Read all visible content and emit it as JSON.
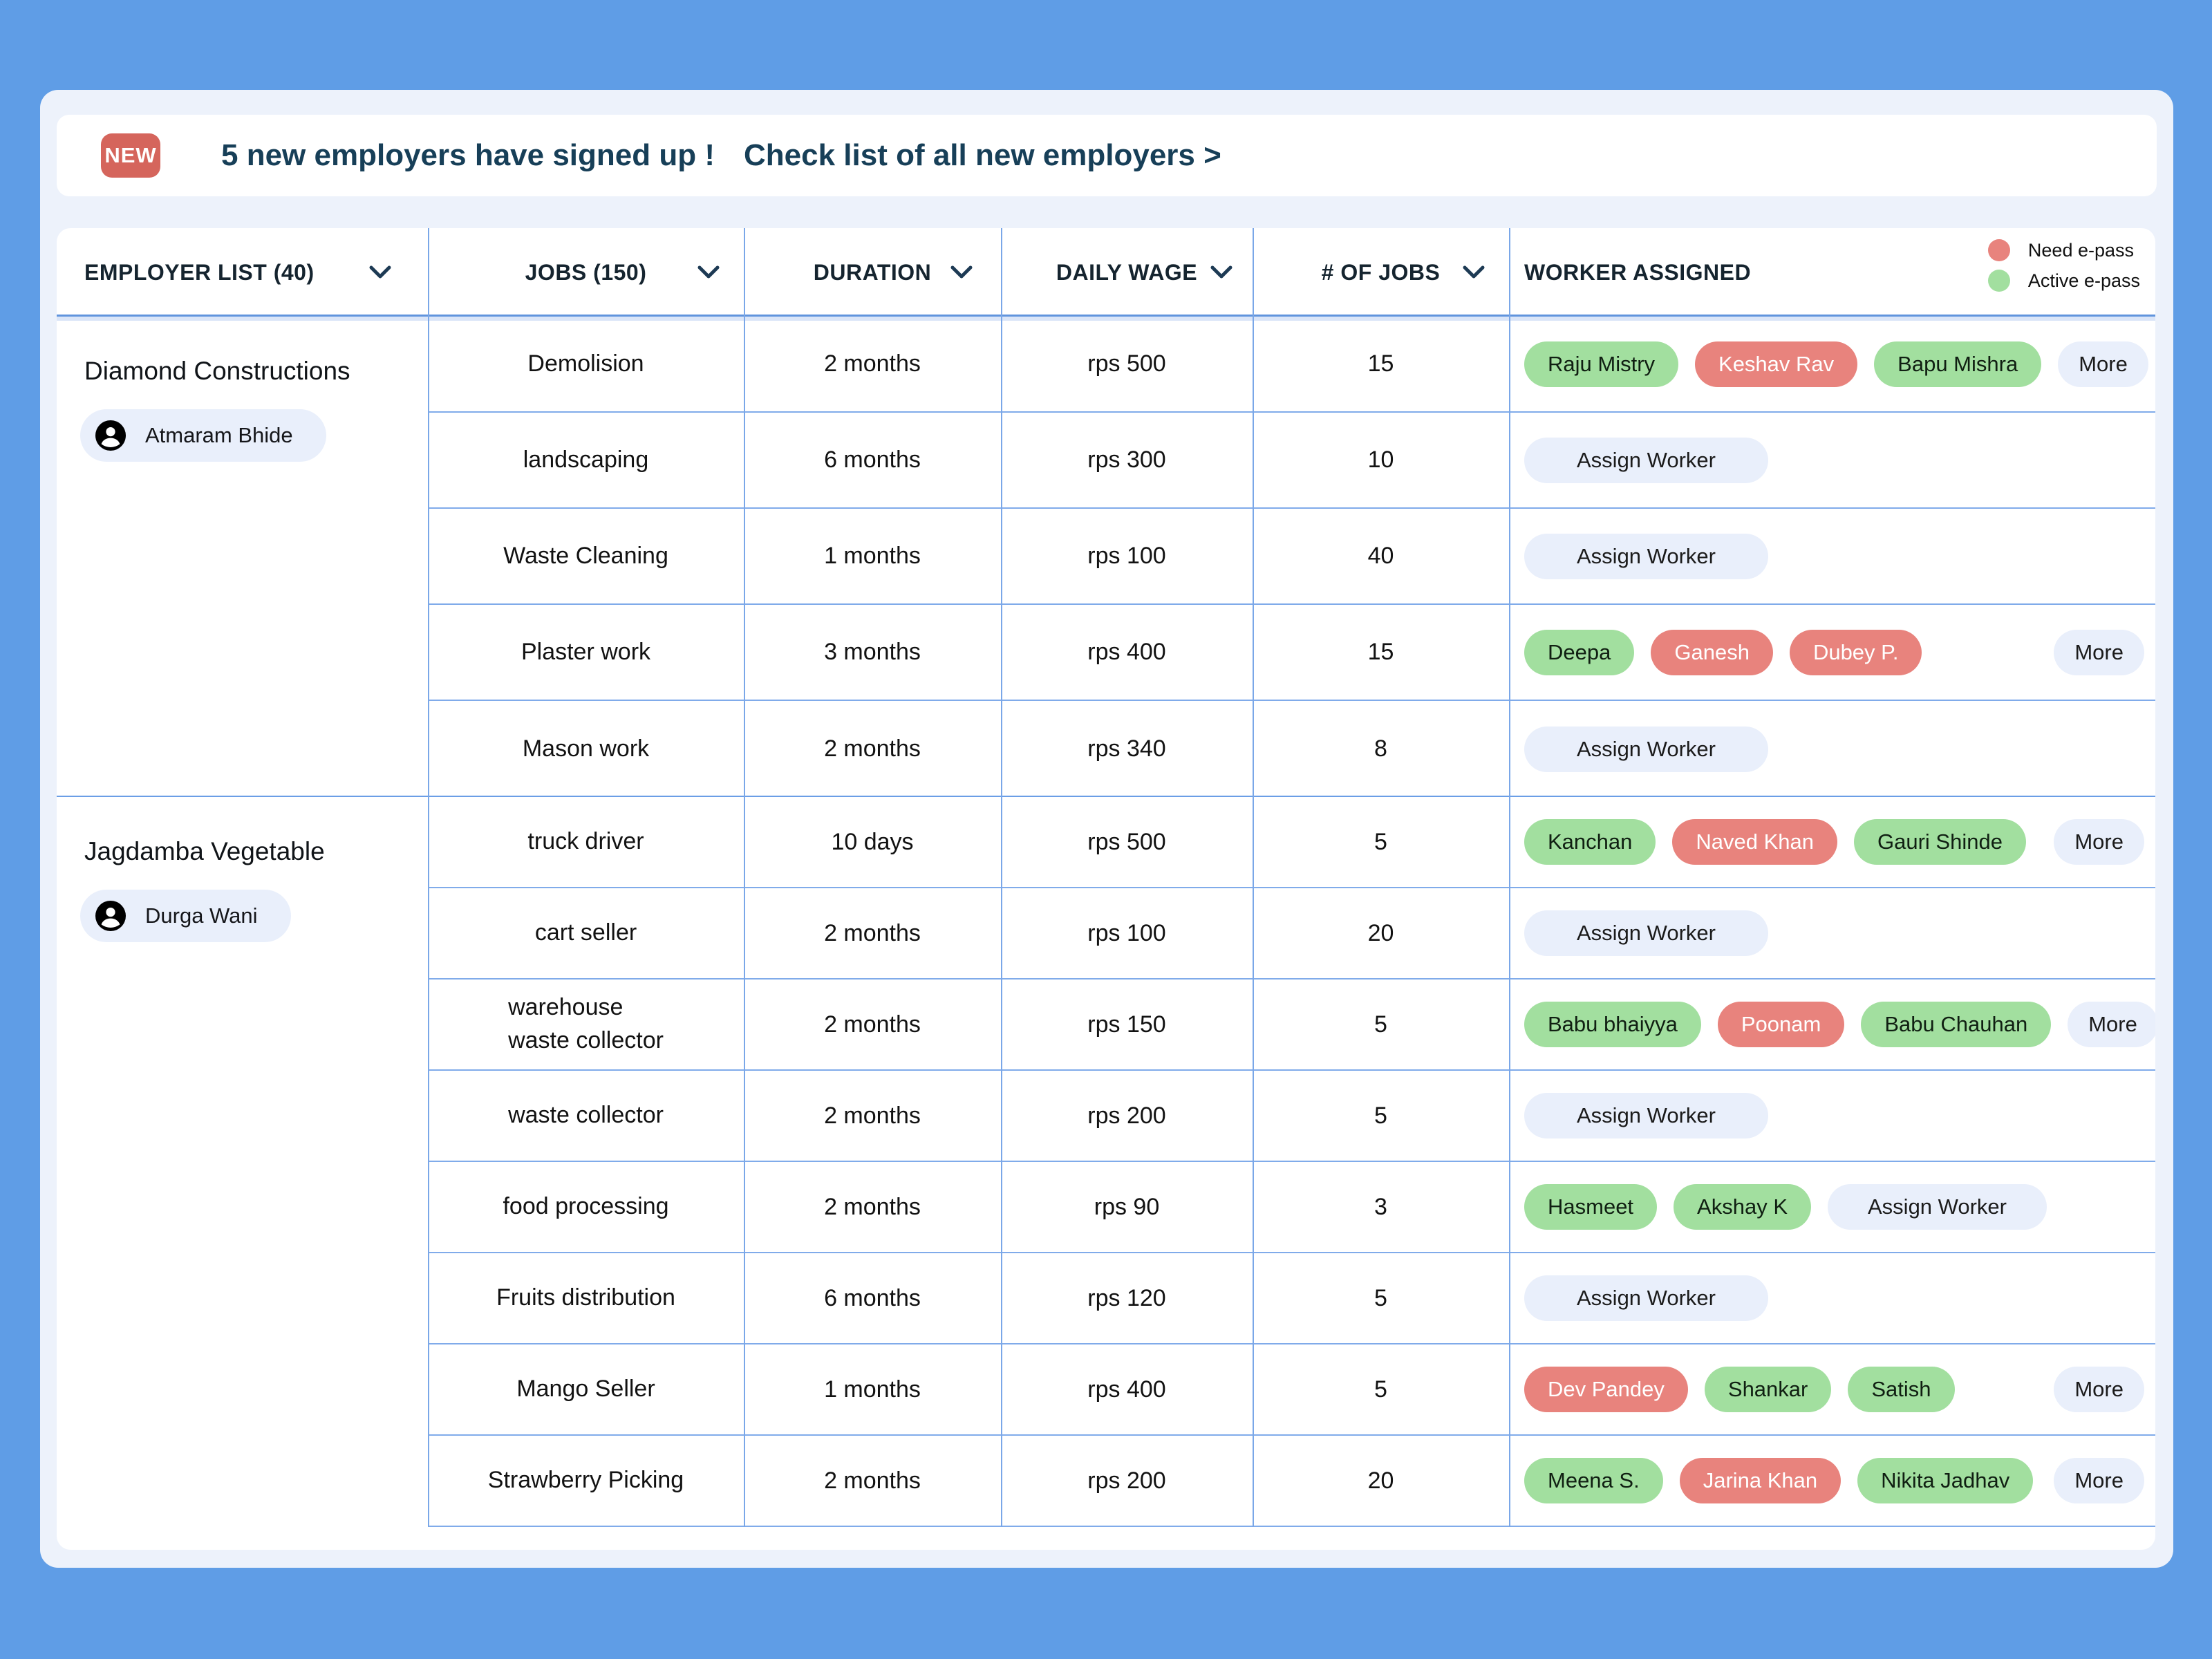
{
  "banner": {
    "badge_label": "NEW",
    "message": "5 new employers have signed up !",
    "link_label": "Check list of all new employers >"
  },
  "legend": [
    {
      "label": "Need e-pass",
      "status": "need"
    },
    {
      "label": "Active e-pass",
      "status": "active"
    }
  ],
  "colors": {
    "need_epass": "#e8837d",
    "active_epass": "#a2df9f",
    "badge_red": "#d5655c",
    "grid_blue": "#7aa7e8",
    "banner_text": "#173f58",
    "chip_blue": "#e9effb"
  },
  "columns": [
    {
      "label": "EMPLOYER LIST (40)",
      "sortable": true
    },
    {
      "label": "JOBS (150)",
      "sortable": true
    },
    {
      "label": "DURATION",
      "sortable": true
    },
    {
      "label": "DAILY WAGE",
      "sortable": true
    },
    {
      "label": "# OF JOBS",
      "sortable": true
    },
    {
      "label": "WORKER ASSIGNED",
      "sortable": false
    }
  ],
  "pill_labels": {
    "assign": "Assign Worker",
    "more": "More"
  },
  "sections": [
    {
      "employer": "Diamond Constructions",
      "contact": "Atmaram Bhide",
      "rows": [
        {
          "job": "Demolision",
          "duration": "2 months",
          "wage": "rps 500",
          "count": "15",
          "workers": [
            {
              "name": "Raju Mistry",
              "status": "active"
            },
            {
              "name": "Keshav Rav",
              "status": "need"
            },
            {
              "name": "Bapu Mishra",
              "status": "active"
            }
          ],
          "more": true,
          "assign": false
        },
        {
          "job": "landscaping",
          "duration": "6 months",
          "wage": "rps 300",
          "count": "10",
          "workers": [],
          "more": false,
          "assign": true
        },
        {
          "job": "Waste Cleaning",
          "duration": "1 months",
          "wage": "rps 100",
          "count": "40",
          "workers": [],
          "more": false,
          "assign": true
        },
        {
          "job": "Plaster work",
          "duration": "3 months",
          "wage": "rps 400",
          "count": "15",
          "workers": [
            {
              "name": "Deepa",
              "status": "active"
            },
            {
              "name": "Ganesh",
              "status": "need"
            },
            {
              "name": "Dubey  P.",
              "status": "need"
            }
          ],
          "more": true,
          "assign": false
        },
        {
          "job": "Mason work",
          "duration": "2 months",
          "wage": "rps 340",
          "count": "8",
          "workers": [],
          "more": false,
          "assign": true
        }
      ]
    },
    {
      "employer": "Jagdamba Vegetable",
      "contact": "Durga Wani",
      "rows": [
        {
          "job": "truck driver",
          "duration": "10 days",
          "wage": "rps 500",
          "count": "5",
          "workers": [
            {
              "name": "Kanchan",
              "status": "active"
            },
            {
              "name": "Naved Khan",
              "status": "need"
            },
            {
              "name": "Gauri Shinde",
              "status": "active"
            }
          ],
          "more": true,
          "assign": false
        },
        {
          "job": "cart seller",
          "duration": "2 months",
          "wage": "rps 100",
          "count": "20",
          "workers": [],
          "more": false,
          "assign": true
        },
        {
          "job": "warehouse\nwaste collector",
          "duration": "2 months",
          "wage": "rps 150",
          "count": "5",
          "workers": [
            {
              "name": "Babu bhaiyya",
              "status": "active"
            },
            {
              "name": "Poonam",
              "status": "need"
            },
            {
              "name": "Babu Chauhan",
              "status": "active"
            }
          ],
          "more": true,
          "assign": false
        },
        {
          "job": "waste collector",
          "duration": "2 months",
          "wage": "rps 200",
          "count": "5",
          "workers": [],
          "more": false,
          "assign": true
        },
        {
          "job": "food processing",
          "duration": "2 months",
          "wage": "rps 90",
          "count": "3",
          "workers": [
            {
              "name": "Hasmeet",
              "status": "active"
            },
            {
              "name": "Akshay K",
              "status": "active"
            }
          ],
          "more": false,
          "assign": true
        },
        {
          "job": "Fruits distribution",
          "duration": "6 months",
          "wage": "rps 120",
          "count": "5",
          "workers": [],
          "more": false,
          "assign": true
        },
        {
          "job": "Mango Seller",
          "duration": "1 months",
          "wage": "rps 400",
          "count": "5",
          "workers": [
            {
              "name": "Dev Pandey",
              "status": "need"
            },
            {
              "name": "Shankar",
              "status": "active"
            },
            {
              "name": "Satish",
              "status": "active"
            }
          ],
          "more": true,
          "assign": false
        },
        {
          "job": "Strawberry Picking",
          "duration": "2 months",
          "wage": "rps 200",
          "count": "20",
          "workers": [
            {
              "name": "Meena S.",
              "status": "active"
            },
            {
              "name": "Jarina Khan",
              "status": "need"
            },
            {
              "name": "Nikita Jadhav",
              "status": "active"
            }
          ],
          "more": true,
          "assign": false
        }
      ]
    }
  ]
}
